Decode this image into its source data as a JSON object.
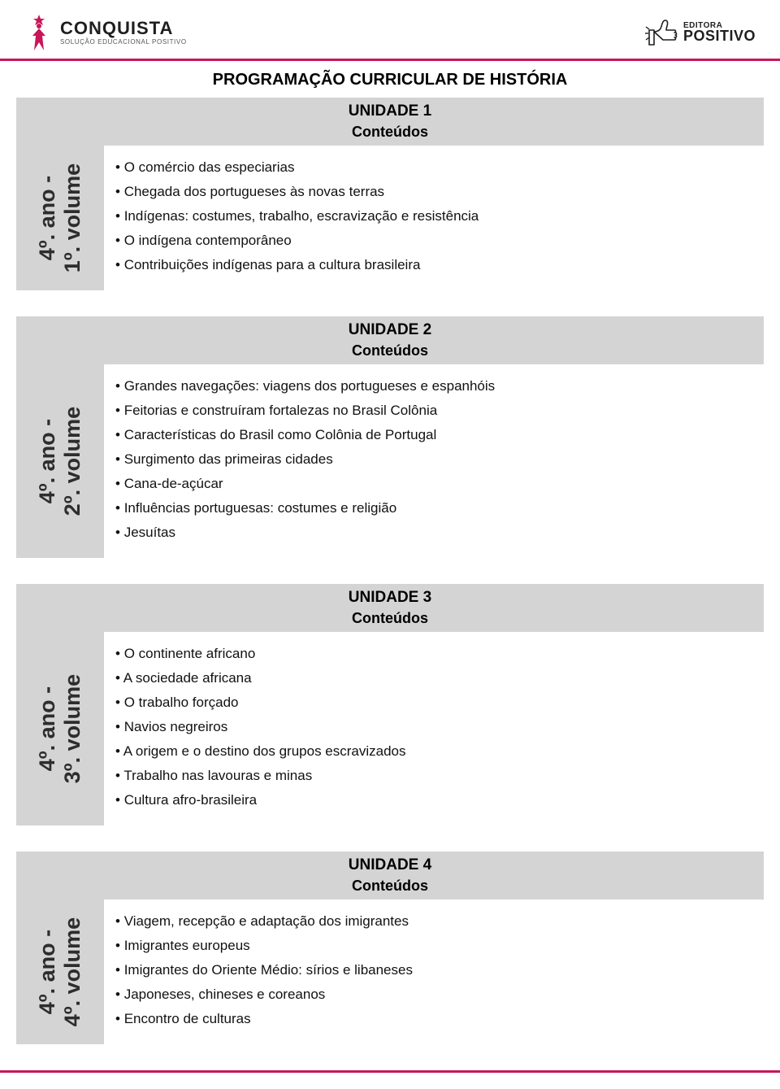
{
  "colors": {
    "accent": "#c9155a",
    "header_gray": "#d4d4d4",
    "text_dark": "#1f1f1f",
    "bullet_text": "#111111",
    "body_bg": "#ffffff"
  },
  "header": {
    "left_logo": {
      "title": "CONQUISTA",
      "subtitle": "SOLUÇÃO EDUCACIONAL POSITIVO",
      "icon_color": "#c9155a"
    },
    "right_logo": {
      "top": "EDITORA",
      "main": "POSITIVO",
      "icon_stroke": "#1f1f1f"
    }
  },
  "page_title": "PROGRAMAÇÃO CURRICULAR DE HISTÓRIA",
  "units": [
    {
      "sidebar": "4º. ano -\n1º. volume",
      "title": "UNIDADE 1",
      "subtitle": "Conteúdos",
      "items": [
        "O comércio das especiarias",
        "Chegada dos portugueses às novas terras",
        "Indígenas: costumes, trabalho, escravização e resistência",
        "O indígena contemporâneo",
        "Contribuições indígenas para a cultura brasileira"
      ]
    },
    {
      "sidebar": "4º. ano -\n2º. volume",
      "title": "UNIDADE 2",
      "subtitle": "Conteúdos",
      "items": [
        "Grandes navegações: viagens dos portugueses e espanhóis",
        "Feitorias e construíram fortalezas no Brasil Colônia",
        "Características do Brasil como Colônia de Portugal",
        "Surgimento das primeiras cidades",
        "Cana-de-açúcar",
        "Influências portuguesas: costumes e religião",
        "Jesuítas"
      ]
    },
    {
      "sidebar": "4º. ano -\n3º. volume",
      "title": "UNIDADE 3",
      "subtitle": "Conteúdos",
      "items": [
        "O continente africano",
        "A sociedade africana",
        "O trabalho forçado",
        "Navios negreiros",
        "A origem e o destino dos grupos escravizados",
        "Trabalho nas lavouras e minas",
        "Cultura afro-brasileira"
      ]
    },
    {
      "sidebar": "4º. ano -\n4º. volume",
      "title": "UNIDADE 4",
      "subtitle": "Conteúdos",
      "items": [
        "Viagem, recepção e adaptação dos imigrantes",
        "Imigrantes europeus",
        "Imigrantes do Oriente Médio: sírios e libaneses",
        "Japoneses, chineses e coreanos",
        "Encontro de culturas"
      ]
    }
  ]
}
